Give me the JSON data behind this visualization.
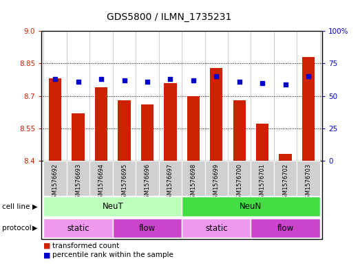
{
  "title": "GDS5800 / ILMN_1735231",
  "samples": [
    "GSM1576692",
    "GSM1576693",
    "GSM1576694",
    "GSM1576695",
    "GSM1576696",
    "GSM1576697",
    "GSM1576698",
    "GSM1576699",
    "GSM1576700",
    "GSM1576701",
    "GSM1576702",
    "GSM1576703"
  ],
  "transformed_counts": [
    8.78,
    8.62,
    8.74,
    8.68,
    8.66,
    8.76,
    8.7,
    8.83,
    8.68,
    8.57,
    8.43,
    8.88
  ],
  "percentile_ranks": [
    63,
    61,
    63,
    62,
    61,
    63,
    62,
    65,
    61,
    60,
    59,
    65
  ],
  "ylim_left": [
    8.4,
    9.0
  ],
  "ylim_right": [
    0,
    100
  ],
  "yticks_left": [
    8.4,
    8.55,
    8.7,
    8.85,
    9.0
  ],
  "yticks_right": [
    0,
    25,
    50,
    75,
    100
  ],
  "bar_color": "#cc2200",
  "dot_color": "#0000cc",
  "cell_line_groups": [
    {
      "label": "NeuT",
      "start": 0,
      "end": 6,
      "color": "#bbffbb"
    },
    {
      "label": "NeuN",
      "start": 6,
      "end": 12,
      "color": "#44dd44"
    }
  ],
  "protocol_groups": [
    {
      "label": "static",
      "start": 0,
      "end": 3,
      "color": "#ee99ee"
    },
    {
      "label": "flow",
      "start": 3,
      "end": 6,
      "color": "#cc44cc"
    },
    {
      "label": "static",
      "start": 6,
      "end": 9,
      "color": "#ee99ee"
    },
    {
      "label": "flow",
      "start": 9,
      "end": 12,
      "color": "#cc44cc"
    }
  ],
  "legend_items": [
    {
      "label": "transformed count",
      "color": "#cc2200"
    },
    {
      "label": "percentile rank within the sample",
      "color": "#0000cc"
    }
  ],
  "xlabel_color": "#cc2200",
  "right_axis_color": "#0000cc",
  "bar_bottom": 8.4,
  "grid_yticks": [
    8.55,
    8.7,
    8.85
  ]
}
